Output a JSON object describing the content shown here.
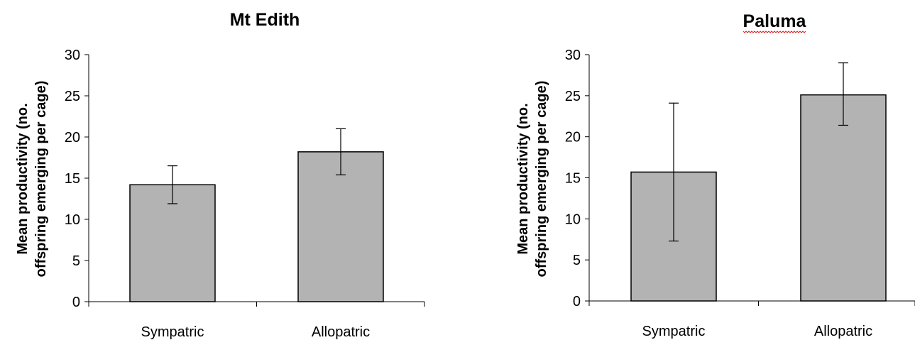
{
  "chart_data": [
    {
      "type": "bar",
      "title": "Mt Edith",
      "ylabel": "Mean productivity (no. offspring emerging per cage)",
      "ylabel_lines": [
        "Mean productivity (no.",
        "offspring emerging per cage)"
      ],
      "categories": [
        "Sympatric",
        "Allopatric"
      ],
      "values": [
        14.2,
        18.2
      ],
      "error_low": [
        11.9,
        15.4
      ],
      "error_high": [
        16.5,
        21.0
      ],
      "ylim": [
        0,
        30
      ],
      "yticks": [
        0,
        5,
        10,
        15,
        20,
        25,
        30
      ],
      "bar_color": "#b3b3b3",
      "grid": false,
      "legend": "none"
    },
    {
      "type": "bar",
      "title": "Paluma",
      "ylabel": "Mean productivity (no. offspring emerging per cage)",
      "ylabel_lines": [
        "Mean productivity (no.",
        "offspring emerging per cage)"
      ],
      "categories": [
        "Sympatric",
        "Allopatric"
      ],
      "values": [
        15.7,
        25.1
      ],
      "error_low": [
        7.3,
        21.4
      ],
      "error_high": [
        24.1,
        29.0
      ],
      "ylim": [
        0,
        30
      ],
      "yticks": [
        0,
        5,
        10,
        15,
        20,
        25,
        30
      ],
      "bar_color": "#b3b3b3",
      "grid": false,
      "legend": "none",
      "title_spellcheck_underline": true
    }
  ]
}
